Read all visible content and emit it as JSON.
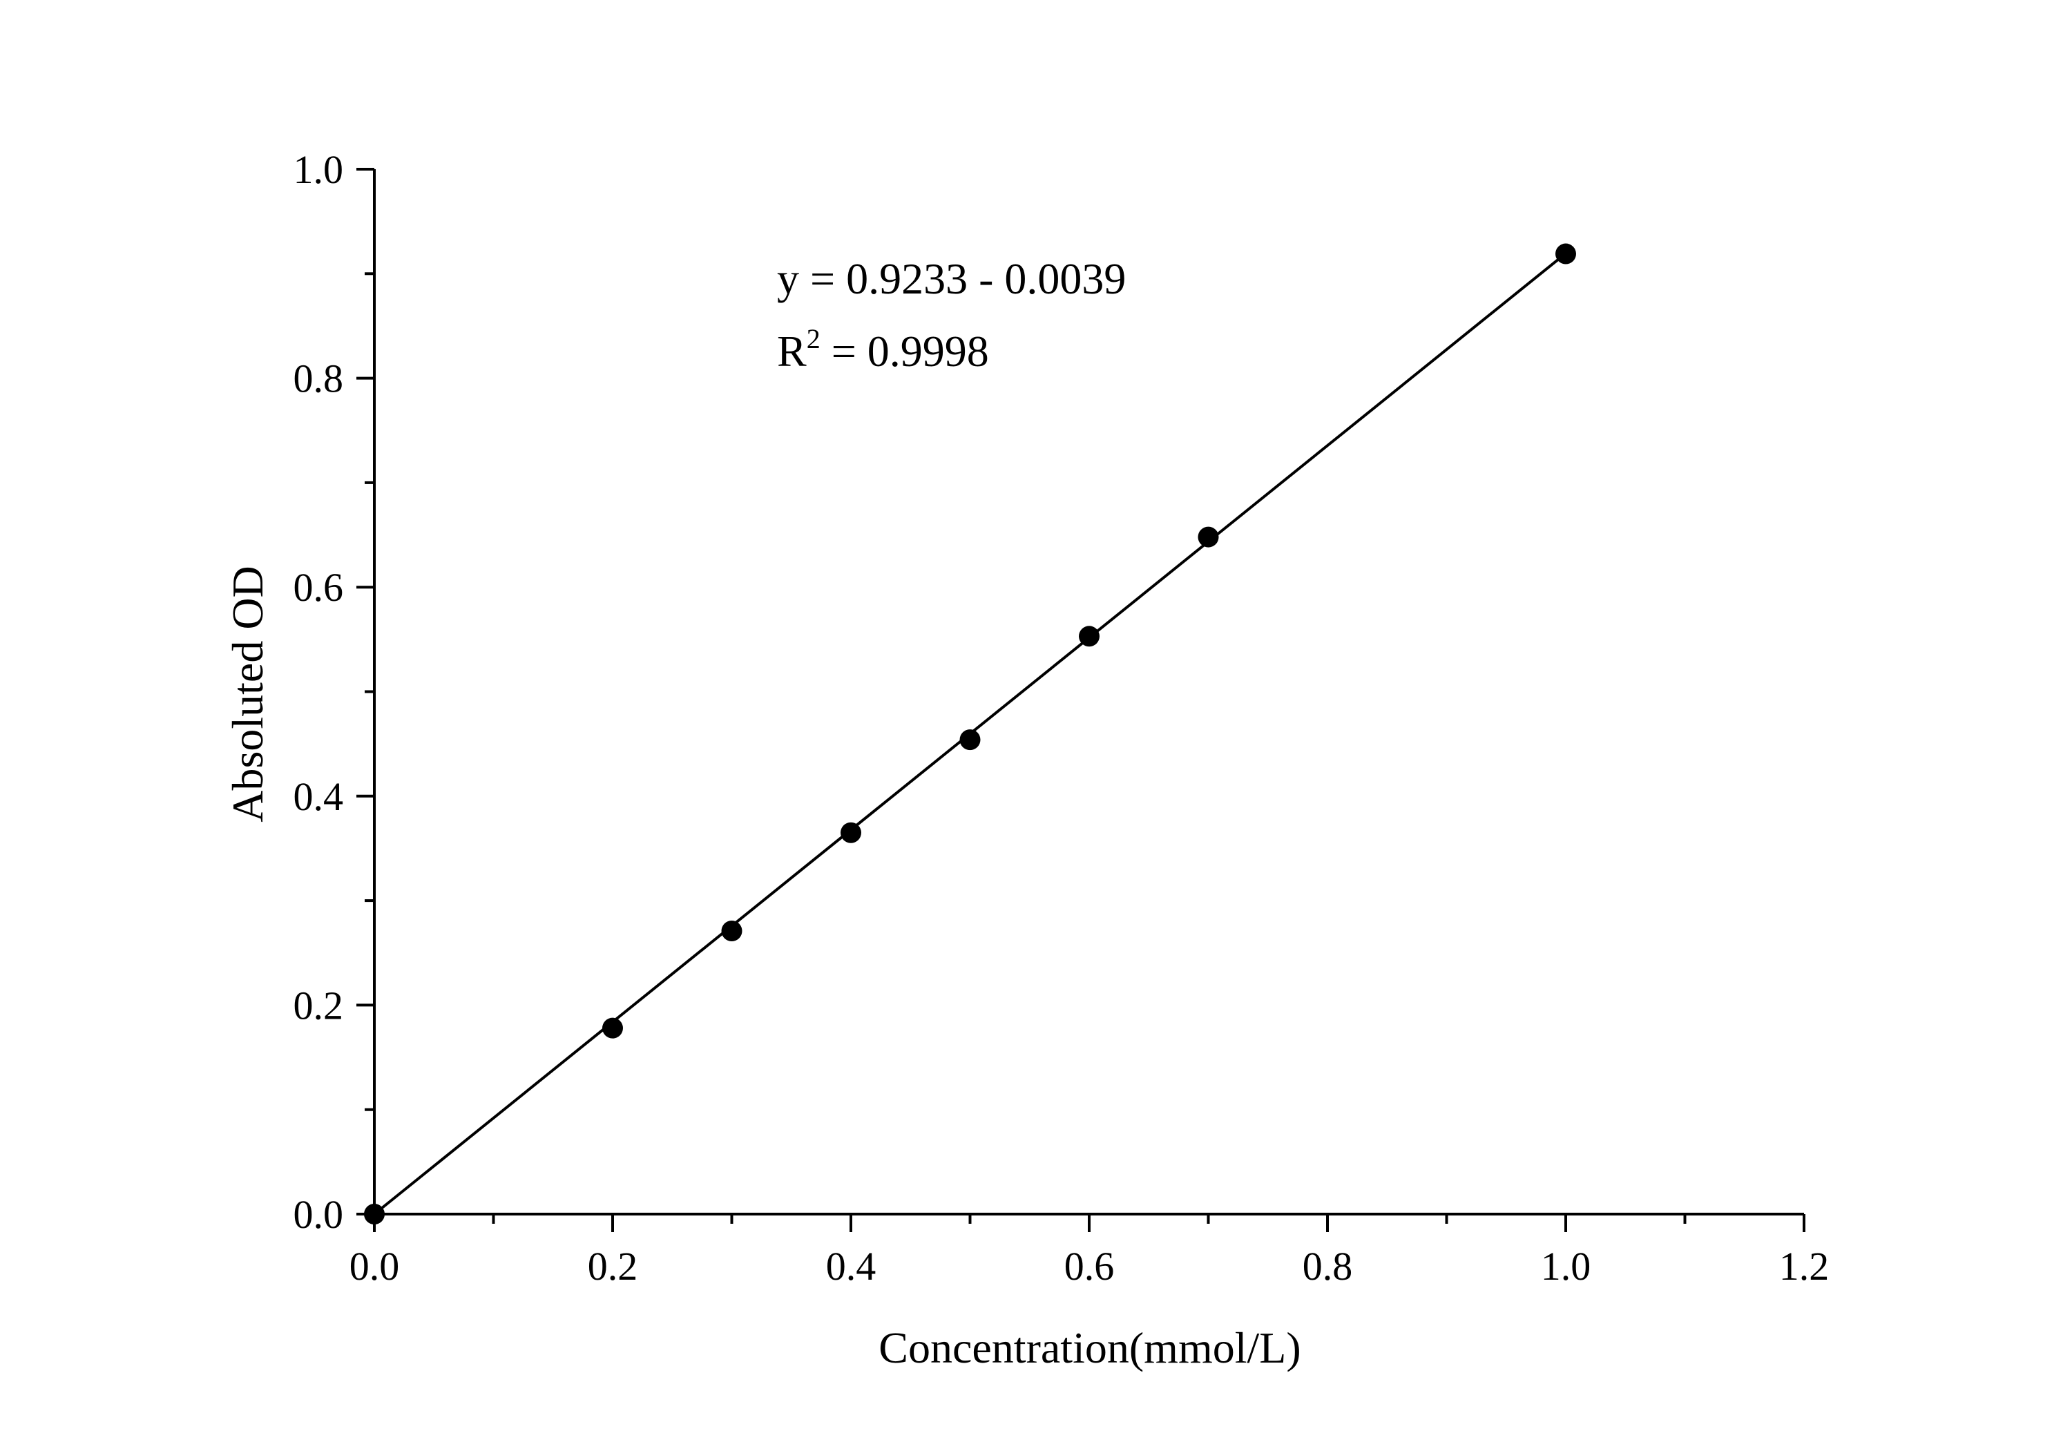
{
  "chart_data": {
    "type": "scatter",
    "title": "",
    "xlabel": "Concentration(mmol/L)",
    "ylabel": "Absoluted OD",
    "xlim": [
      0.0,
      1.2
    ],
    "ylim": [
      0.0,
      1.0
    ],
    "xticks": [
      "0.0",
      "0.2",
      "0.4",
      "0.6",
      "0.8",
      "1.0",
      "1.2"
    ],
    "yticks": [
      "0.0",
      "0.2",
      "0.4",
      "0.6",
      "0.8",
      "1.0"
    ],
    "grid": false,
    "legend": "none",
    "series": [
      {
        "x": [
          0.0,
          0.2,
          0.3,
          0.4,
          0.5,
          0.6,
          0.7,
          1.0
        ],
        "y": [
          0.0,
          0.178,
          0.271,
          0.365,
          0.454,
          0.553,
          0.648,
          0.919
        ],
        "marker": "filled-circle",
        "color": "#000000"
      }
    ],
    "fit_line": {
      "x": [
        0.0,
        1.0
      ],
      "y": [
        -0.0039,
        0.9194
      ],
      "color": "#000000"
    },
    "annotations": {
      "equation": "y = 0.9233 - 0.0039",
      "r2_prefix": "R",
      "r2_sup": "2",
      "r2_value": " = 0.9998"
    }
  }
}
